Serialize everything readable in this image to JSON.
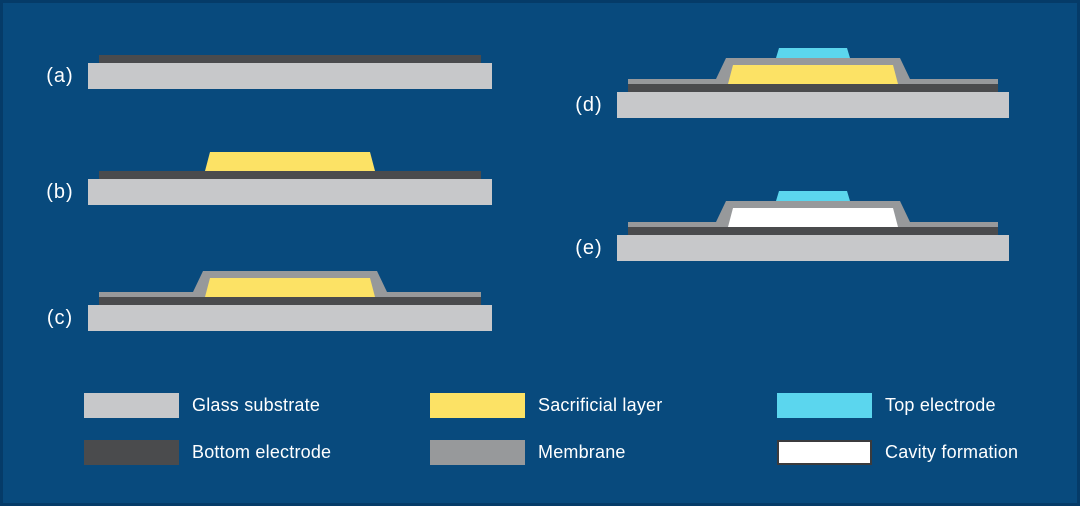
{
  "figure": {
    "background_color": "#084a7d",
    "frame_color": "#063f6d",
    "text_color": "#ffffff"
  },
  "steps": [
    {
      "id": "a",
      "label": "(a)",
      "layers": {
        "glass_substrate": true,
        "bottom_electrode": true,
        "sacrificial_layer": false,
        "membrane": false,
        "top_electrode": false,
        "cavity": false
      }
    },
    {
      "id": "b",
      "label": "(b)",
      "layers": {
        "glass_substrate": true,
        "bottom_electrode": true,
        "sacrificial_layer": true,
        "membrane": false,
        "top_electrode": false,
        "cavity": false
      }
    },
    {
      "id": "c",
      "label": "(c)",
      "layers": {
        "glass_substrate": true,
        "bottom_electrode": true,
        "sacrificial_layer": true,
        "membrane": true,
        "top_electrode": false,
        "cavity": false
      }
    },
    {
      "id": "d",
      "label": "(d)",
      "layers": {
        "glass_substrate": true,
        "bottom_electrode": true,
        "sacrificial_layer": true,
        "membrane": true,
        "top_electrode": true,
        "cavity": false
      }
    },
    {
      "id": "e",
      "label": "(e)",
      "layers": {
        "glass_substrate": true,
        "bottom_electrode": true,
        "sacrificial_layer": false,
        "membrane": true,
        "top_electrode": true,
        "cavity": true
      }
    }
  ],
  "legend": [
    {
      "key": "glass_substrate",
      "label": "Glass substrate",
      "color": "#c7c8ca"
    },
    {
      "key": "bottom_electrode",
      "label": "Bottom electrode",
      "color": "#4a4b4d"
    },
    {
      "key": "sacrificial_layer",
      "label": "Sacrificial layer",
      "color": "#fce265"
    },
    {
      "key": "membrane",
      "label": "Membrane",
      "color": "#97999b"
    },
    {
      "key": "top_electrode",
      "label": "Top electrode",
      "color": "#5bd6ee"
    },
    {
      "key": "cavity",
      "label": "Cavity formation",
      "color": "#ffffff",
      "swatch_border": "#3b3b3d"
    }
  ]
}
